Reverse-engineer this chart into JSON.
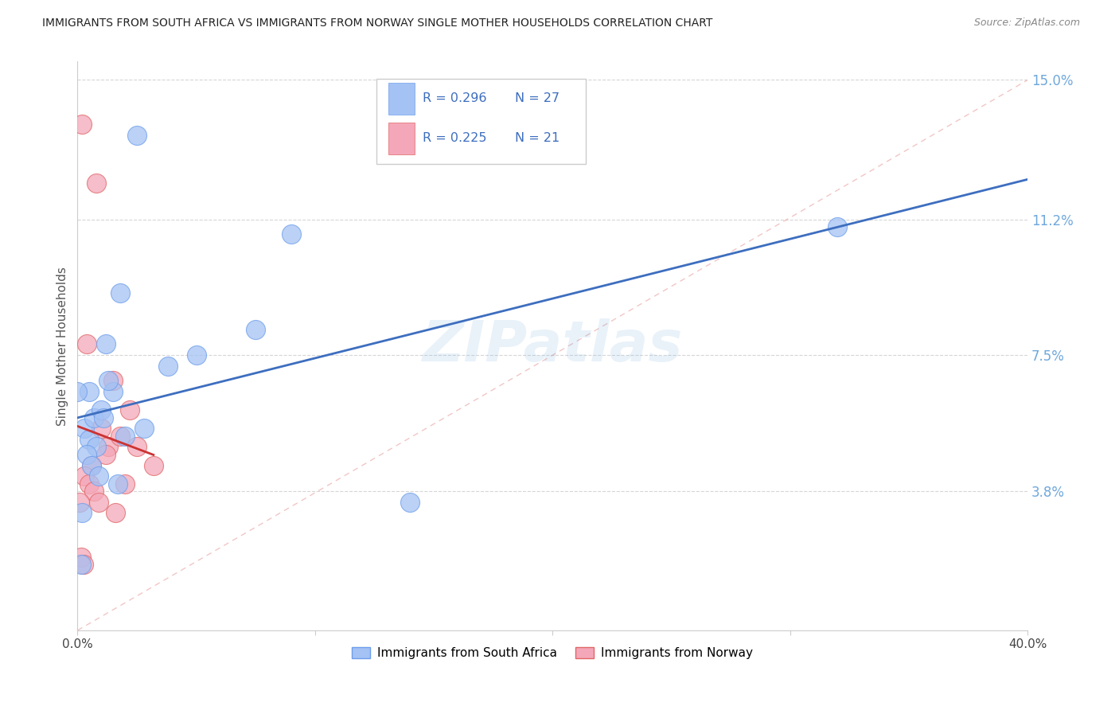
{
  "title": "IMMIGRANTS FROM SOUTH AFRICA VS IMMIGRANTS FROM NORWAY SINGLE MOTHER HOUSEHOLDS CORRELATION CHART",
  "source": "Source: ZipAtlas.com",
  "ylabel": "Single Mother Households",
  "xlim": [
    0.0,
    40.0
  ],
  "ylim": [
    0.0,
    15.5
  ],
  "yticks": [
    3.8,
    7.5,
    11.2,
    15.0
  ],
  "ytick_labels": [
    "3.8%",
    "7.5%",
    "11.2%",
    "15.0%"
  ],
  "xticks": [
    0.0,
    10.0,
    20.0,
    30.0,
    40.0
  ],
  "xtick_labels": [
    "0.0%",
    "",
    "",
    "",
    "40.0%"
  ],
  "legend_r1": "R = 0.296",
  "legend_n1": "N = 27",
  "legend_r2": "R = 0.225",
  "legend_n2": "N = 21",
  "color_blue": "#a4c2f4",
  "color_pink": "#f4a7b9",
  "color_blue_edge": "#6d9eeb",
  "color_pink_edge": "#e06666",
  "color_blue_line": "#3d6ebf",
  "color_pink_line": "#cc3333",
  "color_diag": "#e8a0a0",
  "color_grid": "#cccccc",
  "color_title": "#222222",
  "color_ytick": "#6fa8dc",
  "watermark": "ZIPatlas",
  "south_africa_x": [
    2.5,
    0.5,
    1.2,
    1.8,
    7.5,
    5.0,
    3.8,
    9.0,
    32.0,
    0.3,
    0.5,
    0.7,
    1.0,
    0.8,
    1.5,
    2.0,
    1.3,
    0.4,
    0.6,
    0.9,
    1.1,
    2.8,
    14.0,
    0.2,
    1.7,
    0.15,
    0.0
  ],
  "south_africa_y": [
    13.5,
    6.5,
    7.8,
    9.2,
    8.2,
    7.5,
    7.2,
    10.8,
    11.0,
    5.5,
    5.2,
    5.8,
    6.0,
    5.0,
    6.5,
    5.3,
    6.8,
    4.8,
    4.5,
    4.2,
    5.8,
    5.5,
    3.5,
    3.2,
    4.0,
    1.8,
    6.5
  ],
  "norway_x": [
    0.2,
    0.8,
    1.5,
    2.2,
    0.4,
    0.6,
    1.0,
    1.3,
    0.3,
    0.5,
    0.7,
    0.9,
    1.2,
    1.8,
    2.5,
    3.2,
    0.15,
    1.6,
    2.0,
    0.25,
    0.1
  ],
  "norway_y": [
    13.8,
    12.2,
    6.8,
    6.0,
    7.8,
    4.5,
    5.5,
    5.0,
    4.2,
    4.0,
    3.8,
    3.5,
    4.8,
    5.3,
    5.0,
    4.5,
    2.0,
    3.2,
    4.0,
    1.8,
    3.5
  ],
  "sa_trend_x": [
    0.0,
    40.0
  ],
  "sa_trend_y": [
    5.5,
    10.8
  ],
  "no_trend_x": [
    0.0,
    3.5
  ],
  "no_trend_y": [
    4.5,
    6.2
  ]
}
